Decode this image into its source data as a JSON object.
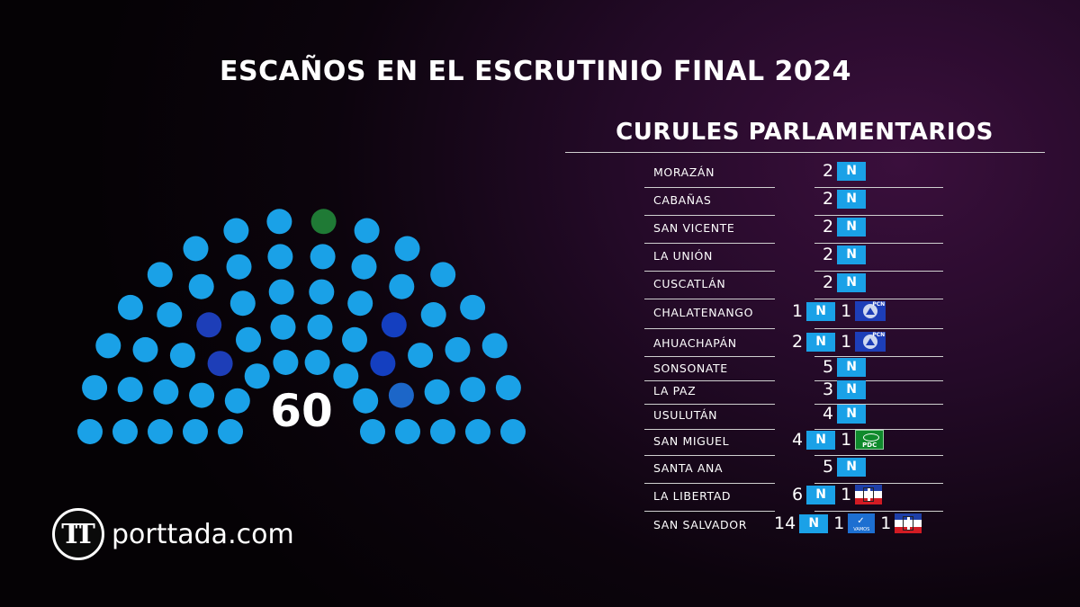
{
  "title": "ESCAÑOS EN EL ESCRUTINIO FINAL 2024",
  "table_title": "CURULES PARLAMENTARIOS",
  "brand": {
    "mark": "TT",
    "name": "porttada.com"
  },
  "colors": {
    "nuevas_ideas": "#1aa1e7",
    "pcn": "#1d3eb8",
    "pdc": "#0f8a2c",
    "arena": "#d21b23",
    "vamos": "#1d6fd1"
  },
  "chart_data": {
    "type": "parliament",
    "total_seats": 60,
    "total_label": "60",
    "series": [
      {
        "party": "nuevas_ideas",
        "seats": 54,
        "color": "#1aa1e7"
      },
      {
        "party": "pcn",
        "seats": 2,
        "color": "#1d3eb8"
      },
      {
        "party": "arena",
        "seats": 2,
        "color": "#143fc0"
      },
      {
        "party": "vamos",
        "seats": 1,
        "color": "#1c66c8"
      },
      {
        "party": "pdc",
        "seats": 1,
        "color": "#1f7a35"
      }
    ]
  },
  "departments": [
    {
      "name": "MORAZÁN",
      "seats": [
        {
          "count": "2",
          "party": "nuevas_ideas",
          "logo": "N"
        }
      ]
    },
    {
      "name": "CABAÑAS",
      "seats": [
        {
          "count": "2",
          "party": "nuevas_ideas",
          "logo": "N"
        }
      ]
    },
    {
      "name": "SAN VICENTE",
      "seats": [
        {
          "count": "2",
          "party": "nuevas_ideas",
          "logo": "N"
        }
      ]
    },
    {
      "name": "LA UNIÓN",
      "seats": [
        {
          "count": "2",
          "party": "nuevas_ideas",
          "logo": "N"
        }
      ]
    },
    {
      "name": "CUSCATLÁN",
      "seats": [
        {
          "count": "2",
          "party": "nuevas_ideas",
          "logo": "N"
        }
      ]
    },
    {
      "name": "CHALATENANGO",
      "seats": [
        {
          "count": "1",
          "party": "nuevas_ideas",
          "logo": "N"
        },
        {
          "count": "1",
          "party": "pcn",
          "logo": "PCN"
        }
      ]
    },
    {
      "name": "AHUACHAPÁN",
      "seats": [
        {
          "count": "2",
          "party": "nuevas_ideas",
          "logo": "N"
        },
        {
          "count": "1",
          "party": "pcn",
          "logo": "PCN"
        }
      ]
    },
    {
      "name": "SONSONATE",
      "seats": [
        {
          "count": "5",
          "party": "nuevas_ideas",
          "logo": "N"
        }
      ]
    },
    {
      "name": "LA PAZ",
      "seats": [
        {
          "count": "3",
          "party": "nuevas_ideas",
          "logo": "N"
        }
      ]
    },
    {
      "name": "USULUTÁN",
      "seats": [
        {
          "count": "4",
          "party": "nuevas_ideas",
          "logo": "N"
        }
      ]
    },
    {
      "name": "SAN MIGUEL",
      "seats": [
        {
          "count": "4",
          "party": "nuevas_ideas",
          "logo": "N"
        },
        {
          "count": "1",
          "party": "pdc",
          "logo": "PDC"
        }
      ]
    },
    {
      "name": "SANTA ANA",
      "seats": [
        {
          "count": "5",
          "party": "nuevas_ideas",
          "logo": "N"
        }
      ]
    },
    {
      "name": "LA LIBERTAD",
      "seats": [
        {
          "count": "6",
          "party": "nuevas_ideas",
          "logo": "N"
        },
        {
          "count": "1",
          "party": "arena",
          "logo": ""
        }
      ]
    },
    {
      "name": "SAN SALVADOR",
      "seats": [
        {
          "count": "14",
          "party": "nuevas_ideas",
          "logo": "N"
        },
        {
          "count": "1",
          "party": "vamos",
          "logo": "VAMOS"
        },
        {
          "count": "1",
          "party": "arena",
          "logo": ""
        }
      ]
    }
  ]
}
